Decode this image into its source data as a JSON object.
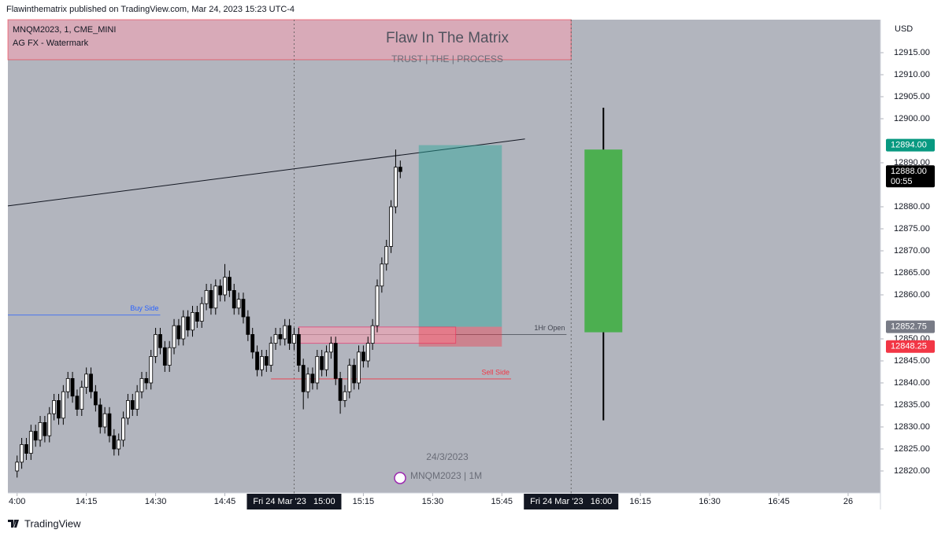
{
  "header": "Flawinthematrix published on TradingView.com, Mar 24, 2023 15:23 UTC-4",
  "footer": "TradingView",
  "chart_data": {
    "type": "candlestick",
    "symbol": "MNQM2023, 1, CME_MINI",
    "indicator": "AG FX - Watermark",
    "currency": "USD",
    "watermark": {
      "title": "Flaw In The Matrix",
      "subtitle": "TRUST  |  THE  |  PROCESS",
      "date": "24/3/2023",
      "symbol": "MNQM2023 | 1M"
    },
    "ylim": [
      12815,
      12922.5
    ],
    "yticks": [
      {
        "value": 12820,
        "label": "12820.00"
      },
      {
        "value": 12825,
        "label": "12825.00"
      },
      {
        "value": 12830,
        "label": "12830.00"
      },
      {
        "value": 12835,
        "label": "12835.00"
      },
      {
        "value": 12840,
        "label": "12840.00"
      },
      {
        "value": 12845,
        "label": "12845.00"
      },
      {
        "value": 12850,
        "label": "12850.00"
      },
      {
        "value": 12860,
        "label": "12860.00"
      },
      {
        "value": 12865,
        "label": "12865.00"
      },
      {
        "value": 12870,
        "label": "12870.00"
      },
      {
        "value": 12875,
        "label": "12875.00"
      },
      {
        "value": 12880,
        "label": "12880.00"
      },
      {
        "value": 12890,
        "label": "12890.00"
      },
      {
        "value": 12900,
        "label": "12900.00"
      },
      {
        "value": 12905,
        "label": "12905.00"
      },
      {
        "value": 12910,
        "label": "12910.00"
      },
      {
        "value": 12915,
        "label": "12915.00"
      }
    ],
    "xlim": [
      "13:58",
      "17:07"
    ],
    "xticks": [
      {
        "value": "14:00",
        "label": "4:00"
      },
      "14:15",
      "14:30",
      "14:45",
      {
        "value": "15:00",
        "label": "Fri 24 Mar '23   15:00",
        "highlight": true
      },
      "15:15",
      "15:30",
      "15:45",
      {
        "value": "16:00",
        "label": "Fri 24 Mar '23   16:00",
        "highlight": true
      },
      "16:15",
      "16:30",
      "16:45",
      {
        "value": "17:00",
        "label": "26"
      }
    ],
    "session_breaks": [
      "15:00",
      "16:00"
    ],
    "series": {
      "up_color": "#ffffff",
      "down_color": "#000000",
      "x": [
        "14:00",
        "14:01",
        "14:02",
        "14:03",
        "14:04",
        "14:05",
        "14:06",
        "14:07",
        "14:08",
        "14:09",
        "14:10",
        "14:11",
        "14:12",
        "14:13",
        "14:14",
        "14:15",
        "14:16",
        "14:17",
        "14:18",
        "14:19",
        "14:20",
        "14:21",
        "14:22",
        "14:23",
        "14:24",
        "14:25",
        "14:26",
        "14:27",
        "14:28",
        "14:29",
        "14:30",
        "14:31",
        "14:32",
        "14:33",
        "14:34",
        "14:35",
        "14:36",
        "14:37",
        "14:38",
        "14:39",
        "14:40",
        "14:41",
        "14:42",
        "14:43",
        "14:44",
        "14:45",
        "14:46",
        "14:47",
        "14:48",
        "14:49",
        "14:50",
        "14:51",
        "14:52",
        "14:53",
        "14:54",
        "14:55",
        "14:56",
        "14:57",
        "14:58",
        "14:59",
        "15:00",
        "15:01",
        "15:02",
        "15:03",
        "15:04",
        "15:05",
        "15:06",
        "15:07",
        "15:08",
        "15:09",
        "15:10",
        "15:11",
        "15:12",
        "15:13",
        "15:14",
        "15:15",
        "15:16",
        "15:17",
        "15:18",
        "15:19",
        "15:20",
        "15:21",
        "15:22",
        "15:23"
      ],
      "open": [
        12820,
        12822,
        12826,
        12824,
        12829,
        12827,
        12831,
        12828,
        12833,
        12836,
        12832,
        12838,
        12841,
        12837,
        12834,
        12839,
        12842,
        12838,
        12835,
        12830,
        12833,
        12828,
        12825,
        12827,
        12832,
        12836,
        12834,
        12838,
        12841,
        12840,
        12846,
        12851,
        12848,
        12844,
        12848,
        12853,
        12850,
        12855,
        12852,
        12856,
        12854,
        12858,
        12861,
        12857,
        12862,
        12860,
        12864,
        12861,
        12857,
        12859,
        12855,
        12851,
        12847,
        12843,
        12846,
        12844,
        12849,
        12851,
        12850,
        12853,
        12849,
        12851,
        12844,
        12838,
        12842,
        12840,
        12846,
        12843,
        12847,
        12849,
        12841,
        12836,
        12838,
        12844,
        12840,
        12847,
        12845,
        12849,
        12853,
        12862,
        12867,
        12871,
        12880,
        12889
      ],
      "high": [
        12823.5,
        12827.5,
        12827.5,
        12830.5,
        12830.5,
        12832.5,
        12832.5,
        12834.5,
        12837.5,
        12837.5,
        12839.5,
        12842.5,
        12842.5,
        12838.5,
        12840.5,
        12843.5,
        12843.5,
        12839.5,
        12836.5,
        12834.5,
        12834.5,
        12829.5,
        12828.5,
        12833.5,
        12837.5,
        12837.5,
        12839.5,
        12842.5,
        12842.5,
        12847.5,
        12852.5,
        12852.5,
        12849.5,
        12849.5,
        12854.5,
        12854.5,
        12856.5,
        12856.5,
        12857.5,
        12857.5,
        12859.5,
        12862.5,
        12862.5,
        12863.5,
        12863.5,
        12867,
        12865.5,
        12862.5,
        12860.5,
        12860.5,
        12856.5,
        12852.5,
        12848.5,
        12847.5,
        12847.5,
        12850.5,
        12852.5,
        12852.5,
        12854.5,
        12854.5,
        12852.5,
        12852.5,
        12845.5,
        12843.5,
        12843.5,
        12847.5,
        12847.5,
        12848.5,
        12850.5,
        12850.5,
        12842.5,
        12839.5,
        12845.5,
        12845.5,
        12848.5,
        12848.5,
        12850.5,
        12854.5,
        12863.5,
        12868.5,
        12872.5,
        12881.5,
        12893,
        12890.5
      ],
      "low": [
        12818.5,
        12820.5,
        12822.5,
        12822.5,
        12825.5,
        12825.5,
        12826.5,
        12826.5,
        12831.5,
        12830.5,
        12830.5,
        12836.5,
        12835.5,
        12832.5,
        12832.5,
        12837.5,
        12836.5,
        12833.5,
        12828.5,
        12828.5,
        12826.5,
        12823.5,
        12823.5,
        12825.5,
        12830.5,
        12832.5,
        12832.5,
        12836.5,
        12838.5,
        12838.5,
        12844.5,
        12846.5,
        12842.5,
        12842.5,
        12846.5,
        12848.5,
        12848.5,
        12850.5,
        12850.5,
        12852.5,
        12852.5,
        12856.5,
        12855.5,
        12855.5,
        12858.5,
        12858.5,
        12859.5,
        12855.5,
        12855.5,
        12853.5,
        12849.5,
        12845.5,
        12841.5,
        12841.5,
        12842.5,
        12842.5,
        12847.5,
        12848.5,
        12848.5,
        12847.5,
        12847.5,
        12842.5,
        12834,
        12836.5,
        12838.5,
        12838.5,
        12841.5,
        12841.5,
        12845.5,
        12839.5,
        12833,
        12834.5,
        12836.5,
        12838.5,
        12838.5,
        12843.5,
        12843.5,
        12847.5,
        12851.5,
        12860.5,
        12865.5,
        12869.5,
        12878.5,
        12886.5
      ],
      "close": [
        12822,
        12826,
        12824,
        12829,
        12827,
        12831,
        12828,
        12833,
        12836,
        12832,
        12838,
        12841,
        12837,
        12834,
        12839,
        12842,
        12838,
        12835,
        12830,
        12833,
        12828,
        12825,
        12827,
        12832,
        12836,
        12834,
        12838,
        12841,
        12840,
        12846,
        12851,
        12848,
        12844,
        12848,
        12853,
        12850,
        12855,
        12852,
        12856,
        12854,
        12858,
        12861,
        12857,
        12862,
        12860,
        12864,
        12861,
        12857,
        12859,
        12855,
        12851,
        12847,
        12843,
        12846,
        12844,
        12849,
        12851,
        12850,
        12853,
        12849,
        12851,
        12844,
        12838,
        12842,
        12840,
        12846,
        12843,
        12847,
        12849,
        12841,
        12836,
        12838,
        12844,
        12840,
        12847,
        12845,
        12849,
        12853,
        12862,
        12867,
        12871,
        12880,
        12889,
        12888
      ]
    },
    "htf_candle": {
      "color": "#4caf50",
      "x": "16:07",
      "open": 12851.5,
      "high": 12902.5,
      "low": 12831.5,
      "close": 12893
    },
    "premium_zone": {
      "color": "#f7a1b2",
      "from": "13:58",
      "to": "16:00",
      "top": 12922.5,
      "bottom": 12913.4
    },
    "trendline": {
      "from": "13:58",
      "to": "15:50",
      "start": 12880.2,
      "end": 12895.4
    },
    "levels": [
      {
        "label": "Buy Side",
        "value": 12855.4,
        "color": "#2962ff",
        "from": "13:58",
        "to": "14:31"
      },
      {
        "label": "Sell Side",
        "value": 12840.9,
        "color": "#f23645",
        "from": "14:55",
        "to": "15:47"
      },
      {
        "label": "1Hr Open",
        "value": 12851,
        "color": "#434651",
        "from": "15:00",
        "to": "15:59"
      }
    ],
    "breaker_zone": {
      "from": "15:01",
      "to": "15:35",
      "top": 12852.7,
      "bottom": 12849
    },
    "position": {
      "from": "15:27",
      "to": "15:45",
      "target": 12894,
      "entry": 12852.75,
      "stop": 12848.25
    },
    "price_tags": [
      {
        "value": 12894,
        "label": "12894.00",
        "color": "#089981"
      },
      {
        "value": 12888,
        "label": "12888.00",
        "sub": "00:55",
        "color": "#000000"
      },
      {
        "value": 12852.75,
        "label": "12852.75",
        "color": "#787b86"
      },
      {
        "value": 12848.25,
        "label": "12848.25",
        "color": "#f23645"
      }
    ]
  }
}
